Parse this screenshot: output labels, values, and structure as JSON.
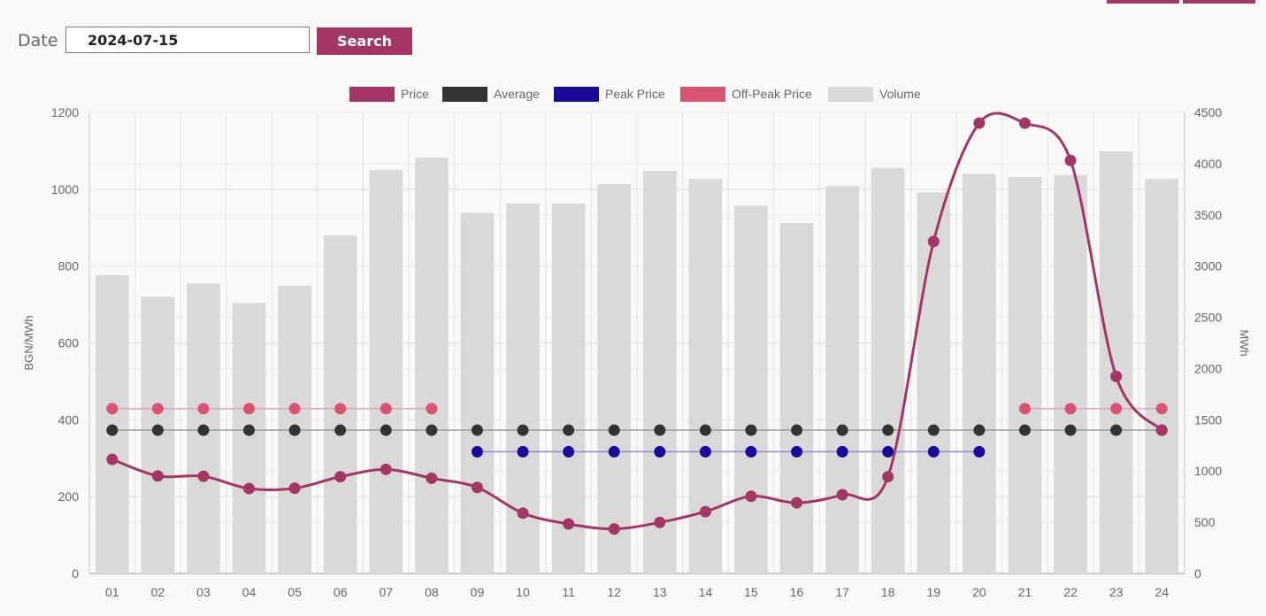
{
  "search": {
    "date_label": "Date",
    "date_value": "2024-07-15",
    "button_label": "Search"
  },
  "colors": {
    "price": "#a33664",
    "average": "#333333",
    "peak": "#1a0a99",
    "offpeak": "#d9556f",
    "volume": "#d9d9d9",
    "accent": "#a33664"
  },
  "chart_data": {
    "type": "bar",
    "categories": [
      "01",
      "02",
      "03",
      "04",
      "05",
      "06",
      "07",
      "08",
      "09",
      "10",
      "11",
      "12",
      "13",
      "14",
      "15",
      "16",
      "17",
      "18",
      "19",
      "20",
      "21",
      "22",
      "23",
      "24"
    ],
    "ylabel": "BGN/MWh",
    "y2label": "MWh",
    "ylim": [
      0,
      1200
    ],
    "y2lim": [
      0,
      4500
    ],
    "yticks": [
      0,
      200,
      400,
      600,
      800,
      1000,
      1200
    ],
    "y2ticks": [
      0,
      500,
      1000,
      1500,
      2000,
      2500,
      3000,
      3500,
      4000,
      4500
    ],
    "grid": true,
    "legend_position": "top-center",
    "series": [
      {
        "name": "Price",
        "kind": "line",
        "axis": "left",
        "values": [
          297,
          254,
          253,
          221,
          222,
          252,
          271,
          248,
          224,
          157,
          129,
          116,
          133,
          161,
          201,
          184,
          205,
          252,
          864,
          1172,
          1172,
          1075,
          513,
          373
        ]
      },
      {
        "name": "Average",
        "kind": "line",
        "axis": "left",
        "values": [
          373,
          373,
          373,
          373,
          373,
          373,
          373,
          373,
          373,
          373,
          373,
          373,
          373,
          373,
          373,
          373,
          373,
          373,
          373,
          373,
          373,
          373,
          373,
          373
        ]
      },
      {
        "name": "Peak Price",
        "kind": "line",
        "axis": "left",
        "values": [
          null,
          null,
          null,
          null,
          null,
          null,
          null,
          null,
          317,
          317,
          317,
          317,
          317,
          317,
          317,
          317,
          317,
          317,
          317,
          317,
          null,
          null,
          null,
          null
        ]
      },
      {
        "name": "Off-Peak Price",
        "kind": "line",
        "axis": "left",
        "values": [
          429,
          429,
          429,
          429,
          429,
          429,
          429,
          429,
          null,
          null,
          null,
          null,
          null,
          null,
          null,
          null,
          null,
          null,
          null,
          null,
          429,
          429,
          429,
          429
        ]
      },
      {
        "name": "Volume",
        "kind": "bar",
        "axis": "right",
        "values": [
          2910,
          2700,
          2830,
          2640,
          2810,
          3300,
          3940,
          4060,
          3520,
          3610,
          3610,
          3800,
          3930,
          3850,
          3590,
          3420,
          3780,
          3960,
          3720,
          3900,
          3870,
          3890,
          4120,
          3850
        ]
      }
    ]
  }
}
